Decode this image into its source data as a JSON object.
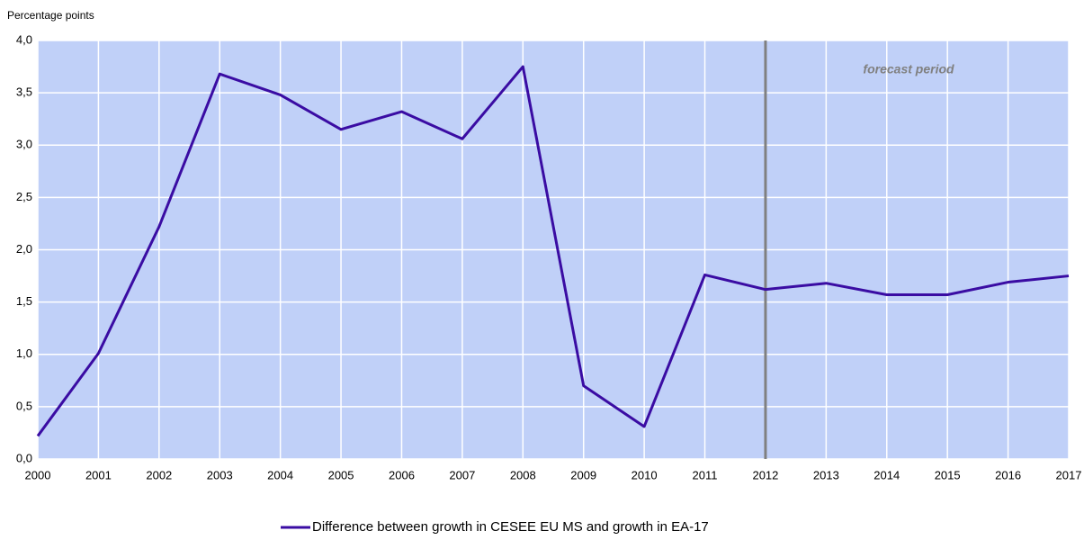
{
  "chart_data": {
    "type": "line",
    "y_label": "Percentage points",
    "x": [
      2000,
      2001,
      2002,
      2003,
      2004,
      2005,
      2006,
      2007,
      2008,
      2009,
      2010,
      2011,
      2012,
      2013,
      2014,
      2015,
      2016,
      2017
    ],
    "series": [
      {
        "name": "Difference between growth in CESEE EU MS and growth in EA-17",
        "color": "#3a0ca3",
        "values": [
          0.22,
          1.01,
          2.22,
          3.68,
          3.48,
          3.15,
          3.32,
          3.06,
          3.75,
          0.7,
          0.31,
          1.76,
          1.62,
          1.68,
          1.57,
          1.57,
          1.69,
          1.75
        ]
      }
    ],
    "xlim": [
      2000,
      2017
    ],
    "xticks": [
      2000,
      2001,
      2002,
      2003,
      2004,
      2005,
      2006,
      2007,
      2008,
      2009,
      2010,
      2011,
      2012,
      2013,
      2014,
      2015,
      2016,
      2017
    ],
    "ylim": [
      0,
      4
    ],
    "yticks": [
      {
        "value": 0,
        "label": "0,0"
      },
      {
        "value": 0.5,
        "label": "0,5"
      },
      {
        "value": 1,
        "label": "1,0"
      },
      {
        "value": 1.5,
        "label": "1,5"
      },
      {
        "value": 2,
        "label": "2,0"
      },
      {
        "value": 2.5,
        "label": "2,5"
      },
      {
        "value": 3,
        "label": "3,0"
      },
      {
        "value": 3.5,
        "label": "3,5"
      },
      {
        "value": 4,
        "label": "4,0"
      }
    ],
    "grid": true,
    "plot_background": "#c0d0f8",
    "forecast_start": 2012,
    "forecast_color": "#808080",
    "annotation": "forecast period",
    "legend": "bottom"
  }
}
